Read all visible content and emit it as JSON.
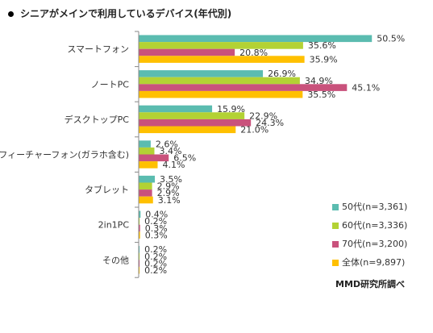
{
  "title": "シニアがメインで利用しているデバイス(年代別)",
  "source": "MMD研究所調べ",
  "chart_data": {
    "type": "bar",
    "orientation": "horizontal",
    "title": "シニアがメインで利用しているデバイス(年代別)",
    "categories": [
      "スマートフォン",
      "ノートPC",
      "デスクトップPC",
      "フィーチャーフォン(ガラホ含む)",
      "タブレット",
      "2in1PC",
      "その他"
    ],
    "series": [
      {
        "name": "50代(n=3,361)",
        "color": "#5bbcb0",
        "values": [
          50.5,
          26.9,
          15.9,
          2.6,
          3.5,
          0.4,
          0.2
        ]
      },
      {
        "name": "60代(n=3,336)",
        "color": "#b3d234",
        "values": [
          35.6,
          34.9,
          22.9,
          3.4,
          2.9,
          0.2,
          0.2
        ]
      },
      {
        "name": "70代(n=3,200)",
        "color": "#c9527c",
        "values": [
          20.8,
          45.1,
          24.3,
          6.5,
          2.9,
          0.3,
          0.2
        ]
      },
      {
        "name": "全体(n=9,897)",
        "color": "#ffc000",
        "values": [
          35.9,
          35.5,
          21.0,
          4.1,
          3.1,
          0.3,
          0.2
        ]
      }
    ],
    "value_suffix": "%",
    "xlim": [
      0,
      55
    ],
    "grid": false,
    "legend_position": "bottom-right"
  }
}
